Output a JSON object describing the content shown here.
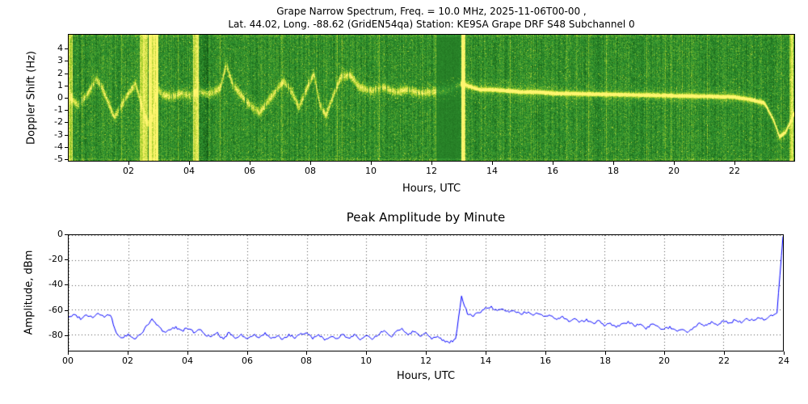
{
  "chart_data": [
    {
      "type": "heatmap",
      "title_line1": "Grape Narrow Spectrum, Freq. = 10.0 MHz, 2025-11-06T00-00 ,",
      "title_line2": "Lat.  44.02, Long. -88.62 (GridEN54qa) Station: KE9SA Grape DRF S48 Subchannel 0",
      "xlabel": "Hours, UTC",
      "ylabel": "Doppler Shift (Hz)",
      "xlim": [
        0,
        24
      ],
      "ylim": [
        -5.2,
        5.2
      ],
      "xticks": [
        2,
        4,
        6,
        8,
        10,
        12,
        14,
        16,
        18,
        20,
        22
      ],
      "xtick_labels": [
        "02",
        "04",
        "06",
        "08",
        "10",
        "12",
        "14",
        "16",
        "18",
        "20",
        "22"
      ],
      "yticks": [
        4,
        3,
        2,
        1,
        0,
        -1,
        -2,
        -3,
        -4,
        -5
      ],
      "ytick_labels": [
        "4",
        "3",
        "2",
        "1",
        "0",
        "-1",
        "-2",
        "-3",
        "-4",
        "-5"
      ],
      "colormap": {
        "low": "#084208",
        "midlow": "#329632",
        "midhigh": "#a2cc28",
        "peak": "#fff66e"
      },
      "doppler_trace": {
        "x": [
          0,
          0.3,
          0.6,
          0.9,
          1.1,
          1.3,
          1.5,
          1.8,
          2.0,
          2.2,
          2.5,
          2.7,
          2.9,
          3.1,
          3.4,
          3.7,
          4.0,
          4.3,
          4.6,
          5.0,
          5.2,
          5.4,
          5.7,
          6.0,
          6.3,
          6.6,
          6.9,
          7.1,
          7.4,
          7.6,
          7.9,
          8.1,
          8.3,
          8.5,
          8.8,
          9.0,
          9.3,
          9.6,
          10.0,
          10.4,
          10.8,
          11.2,
          11.6,
          12.0,
          12.5,
          13.0,
          13.3,
          13.6,
          14.0,
          14.5,
          15.0,
          15.5,
          16.0,
          17.0,
          18.0,
          19.0,
          20.0,
          21.0,
          22.0,
          22.5,
          23.0,
          23.3,
          23.5,
          23.7,
          24.0
        ],
        "y": [
          0.2,
          -0.6,
          0.3,
          1.6,
          0.8,
          -0.4,
          -1.6,
          -0.3,
          0.5,
          1.2,
          -1.5,
          -2.5,
          0.8,
          0.3,
          0.1,
          0.4,
          0.2,
          0.6,
          0.3,
          0.8,
          2.8,
          1.2,
          0.2,
          -0.6,
          -1.2,
          -0.2,
          0.8,
          1.4,
          0.4,
          -0.8,
          1.0,
          2.0,
          -0.6,
          -1.4,
          0.6,
          1.8,
          1.9,
          0.9,
          0.6,
          0.9,
          0.5,
          0.7,
          0.4,
          0.5,
          0.6,
          1.2,
          0.9,
          0.7,
          0.7,
          0.6,
          0.5,
          0.5,
          0.4,
          0.35,
          0.3,
          0.25,
          0.2,
          0.15,
          0.1,
          -0.1,
          -0.4,
          -1.8,
          -3.2,
          -2.8,
          -1.2
        ]
      },
      "noise_bands": [
        {
          "start": 0.0,
          "end": 0.12,
          "strength": 0.5
        },
        {
          "start": 2.35,
          "end": 2.6,
          "strength": 0.55
        },
        {
          "start": 2.62,
          "end": 2.95,
          "strength": 0.7
        },
        {
          "start": 4.1,
          "end": 4.3,
          "strength": 0.5
        },
        {
          "start": 12.98,
          "end": 13.1,
          "strength": 0.75
        },
        {
          "start": 23.82,
          "end": 23.97,
          "strength": 0.5
        }
      ],
      "quiet_bands": [
        {
          "start": 12.15,
          "end": 12.95
        }
      ],
      "dark_bands": [
        {
          "start": 4.35,
          "end": 4.6
        }
      ],
      "trace_style": {
        "change_hour": 12.95,
        "amp_before": 0.55,
        "sigma_before": 3.2,
        "amp_after": 1.05,
        "sigma_after": 1.5
      }
    },
    {
      "type": "line",
      "title": "Peak Amplitude by Minute",
      "xlabel": "Hours, UTC",
      "ylabel": "Amplitude, dBm",
      "xlim": [
        0,
        24
      ],
      "ylim": [
        -93,
        0
      ],
      "xticks": [
        0,
        2,
        4,
        6,
        8,
        10,
        12,
        14,
        16,
        18,
        20,
        22,
        24
      ],
      "xtick_labels": [
        "00",
        "02",
        "04",
        "06",
        "08",
        "10",
        "12",
        "14",
        "16",
        "18",
        "20",
        "22",
        "24"
      ],
      "yticks": [
        0,
        -20,
        -40,
        -60,
        -80
      ],
      "ytick_labels": [
        "0",
        "-20",
        "-40",
        "-60",
        "-80"
      ],
      "grid": true,
      "grid_color": "#555555",
      "line_color": "#0000ff",
      "series": [
        {
          "name": "peak_amplitude_dbm",
          "x_start": 0,
          "x_step": 0.2,
          "y": [
            -66,
            -64,
            -67,
            -64,
            -66,
            -63,
            -66,
            -64,
            -79,
            -83,
            -80,
            -84,
            -80,
            -74,
            -68,
            -73,
            -78,
            -76,
            -74,
            -77,
            -75,
            -78,
            -76,
            -80,
            -82,
            -79,
            -84,
            -78,
            -83,
            -80,
            -84,
            -80,
            -83,
            -79,
            -84,
            -81,
            -84,
            -80,
            -83,
            -80,
            -78,
            -83,
            -80,
            -84,
            -81,
            -84,
            -80,
            -83,
            -80,
            -84,
            -81,
            -84,
            -80,
            -77,
            -82,
            -78,
            -75,
            -80,
            -77,
            -81,
            -79,
            -83,
            -81,
            -85,
            -86,
            -84,
            -50,
            -63,
            -65,
            -62,
            -59,
            -58,
            -61,
            -60,
            -62,
            -61,
            -63,
            -62,
            -64,
            -63,
            -66,
            -65,
            -68,
            -66,
            -69,
            -67,
            -70,
            -68,
            -71,
            -69,
            -73,
            -71,
            -74,
            -72,
            -70,
            -73,
            -71,
            -75,
            -72,
            -74,
            -76,
            -74,
            -77,
            -75,
            -78,
            -74,
            -71,
            -73,
            -70,
            -72,
            -69,
            -71,
            -68,
            -70,
            -67,
            -69,
            -66,
            -68,
            -65,
            -63,
            -1
          ]
        }
      ]
    }
  ]
}
